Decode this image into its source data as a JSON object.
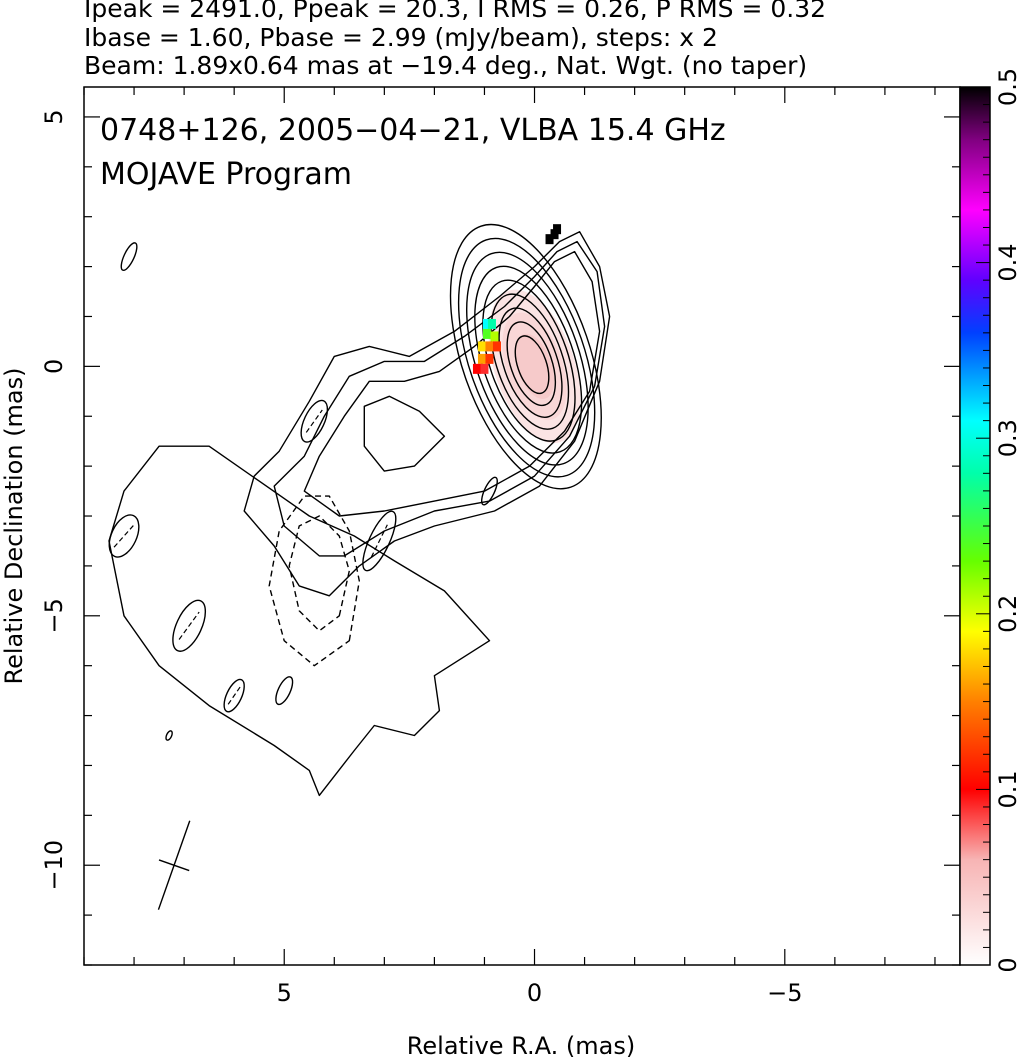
{
  "header": {
    "line1": "Ipeak = 2491.0, Ppeak = 20.3, I RMS = 0.26, P RMS = 0.32",
    "line2": "Ibase = 1.60, Pbase = 2.99 (mJy/beam), steps: x 2",
    "line3": "Beam: 1.89x0.64 mas at −19.4 deg., Nat. Wgt. (no taper)"
  },
  "chart_data": {
    "type": "heatmap",
    "title": "0748+126, 2005−04−21, VLBA 15.4 GHz",
    "subtitle": "MOJAVE Program",
    "xlabel": "Relative R.A. (mas)",
    "ylabel": "Relative Declination (mas)",
    "xlim": [
      9.0,
      -8.5
    ],
    "ylim": [
      -12.0,
      5.6
    ],
    "x_ticks": [
      {
        "value": 5,
        "label": "5"
      },
      {
        "value": 0,
        "label": "0"
      },
      {
        "value": -5,
        "label": "−5"
      }
    ],
    "y_ticks": [
      {
        "value": 5,
        "label": "5"
      },
      {
        "value": 0,
        "label": "0"
      },
      {
        "value": -5,
        "label": "−5"
      },
      {
        "value": -10,
        "label": "−10"
      }
    ],
    "colorbar": {
      "range": [
        0,
        0.5
      ],
      "ticks": [
        {
          "value": 0,
          "label": "0"
        },
        {
          "value": 0.1,
          "label": "0.1"
        },
        {
          "value": 0.2,
          "label": "0.2"
        },
        {
          "value": 0.3,
          "label": "0.3"
        },
        {
          "value": 0.4,
          "label": "0.4"
        },
        {
          "value": 0.5,
          "label": "0.5"
        }
      ]
    },
    "beam": {
      "major": 1.89,
      "minor": 0.64,
      "pa_deg": -19.4,
      "center": [
        7.2,
        -10.0
      ]
    },
    "core": {
      "x": 0.0,
      "y": 0.0,
      "peak": 2491.0,
      "contour_levels": 9
    },
    "jet_contours": [
      [
        [
          -0.9,
          2.7
        ],
        [
          -1.3,
          2.0
        ],
        [
          -1.5,
          1.0
        ],
        [
          -1.3,
          -0.3
        ],
        [
          -0.8,
          -1.5
        ],
        [
          -0.1,
          -2.4
        ],
        [
          0.8,
          -2.9
        ],
        [
          2.0,
          -3.2
        ],
        [
          2.8,
          -3.5
        ],
        [
          3.5,
          -4.0
        ],
        [
          4.1,
          -4.6
        ],
        [
          4.7,
          -4.4
        ],
        [
          5.2,
          -3.6
        ],
        [
          5.8,
          -2.9
        ],
        [
          5.6,
          -2.2
        ],
        [
          5.1,
          -1.7
        ],
        [
          4.5,
          -0.7
        ],
        [
          4.0,
          0.2
        ],
        [
          3.3,
          0.4
        ],
        [
          2.5,
          0.2
        ],
        [
          1.6,
          0.7
        ],
        [
          0.7,
          1.4
        ],
        [
          0.0,
          2.0
        ],
        [
          -0.5,
          2.5
        ]
      ],
      [
        [
          -0.85,
          2.5
        ],
        [
          -1.25,
          1.9
        ],
        [
          -1.4,
          0.8
        ],
        [
          -1.2,
          -0.4
        ],
        [
          -0.7,
          -1.4
        ],
        [
          0.0,
          -2.2
        ],
        [
          0.9,
          -2.7
        ],
        [
          2.0,
          -2.9
        ],
        [
          3.0,
          -3.3
        ],
        [
          3.8,
          -3.8
        ],
        [
          4.3,
          -3.8
        ],
        [
          5.0,
          -3.2
        ],
        [
          5.2,
          -2.4
        ],
        [
          4.6,
          -1.8
        ],
        [
          4.2,
          -1.0
        ],
        [
          3.7,
          -0.2
        ],
        [
          3.0,
          0.1
        ],
        [
          2.2,
          0.1
        ],
        [
          1.4,
          0.6
        ],
        [
          0.6,
          1.2
        ],
        [
          0.0,
          1.8
        ],
        [
          -0.45,
          2.3
        ]
      ],
      [
        [
          -0.8,
          2.3
        ],
        [
          -1.15,
          1.7
        ],
        [
          -1.3,
          0.7
        ],
        [
          -1.1,
          -0.5
        ],
        [
          -0.6,
          -1.3
        ],
        [
          0.1,
          -2.0
        ],
        [
          1.0,
          -2.5
        ],
        [
          2.0,
          -2.7
        ],
        [
          3.0,
          -2.9
        ],
        [
          3.9,
          -3.0
        ],
        [
          4.6,
          -2.5
        ],
        [
          4.3,
          -1.8
        ],
        [
          3.8,
          -1.0
        ],
        [
          3.3,
          -0.3
        ],
        [
          2.6,
          -0.3
        ],
        [
          1.9,
          -0.1
        ],
        [
          1.2,
          0.4
        ],
        [
          0.5,
          1.0
        ],
        [
          0.0,
          1.6
        ],
        [
          -0.4,
          2.1
        ]
      ],
      [
        [
          1.8,
          -1.4
        ],
        [
          2.3,
          -0.9
        ],
        [
          2.9,
          -0.6
        ],
        [
          3.4,
          -0.8
        ],
        [
          3.4,
          -1.6
        ],
        [
          3.0,
          -2.1
        ],
        [
          2.4,
          -2.0
        ]
      ]
    ],
    "sw_contours": [
      [
        [
          2.0,
          -6.2
        ],
        [
          1.9,
          -6.9
        ],
        [
          2.4,
          -7.4
        ],
        [
          3.2,
          -7.2
        ],
        [
          3.6,
          -7.7
        ],
        [
          4.3,
          -8.6
        ],
        [
          4.5,
          -8.1
        ],
        [
          5.2,
          -7.6
        ],
        [
          6.5,
          -6.8
        ],
        [
          7.5,
          -6.0
        ],
        [
          8.2,
          -5.0
        ],
        [
          8.5,
          -3.5
        ],
        [
          8.2,
          -2.5
        ],
        [
          7.5,
          -1.6
        ],
        [
          6.5,
          -1.6
        ],
        [
          5.5,
          -2.3
        ],
        [
          4.5,
          -3.0
        ],
        [
          3.6,
          -3.4
        ],
        [
          2.8,
          -3.9
        ],
        [
          1.8,
          -4.5
        ],
        [
          0.9,
          -5.5
        ]
      ],
      [
        [
          3.7,
          -5.5
        ],
        [
          3.5,
          -4.3
        ],
        [
          3.7,
          -3.3
        ],
        [
          4.1,
          -2.6
        ],
        [
          4.6,
          -2.6
        ],
        [
          5.1,
          -3.3
        ],
        [
          5.3,
          -4.4
        ],
        [
          5.0,
          -5.5
        ],
        [
          4.4,
          -6.0
        ]
      ],
      [
        [
          3.9,
          -5.0
        ],
        [
          3.7,
          -4.1
        ],
        [
          3.9,
          -3.4
        ],
        [
          4.3,
          -3.0
        ],
        [
          4.7,
          -3.2
        ],
        [
          4.9,
          -4.0
        ],
        [
          4.7,
          -4.9
        ],
        [
          4.3,
          -5.3
        ]
      ]
    ],
    "noise_blobs": [
      {
        "x": 8.2,
        "y": -3.4,
        "rx": 0.25,
        "ry": 0.45,
        "hatched": true
      },
      {
        "x": 6.9,
        "y": -5.2,
        "rx": 0.25,
        "ry": 0.55,
        "hatched": true
      },
      {
        "x": 7.3,
        "y": -7.4,
        "rx": 0.05,
        "ry": 0.1,
        "hatched": false
      },
      {
        "x": 4.4,
        "y": -1.1,
        "rx": 0.2,
        "ry": 0.45,
        "hatched": true
      },
      {
        "x": 3.1,
        "y": -3.5,
        "rx": 0.2,
        "ry": 0.65,
        "hatched": true
      },
      {
        "x": 0.9,
        "y": -2.5,
        "rx": 0.1,
        "ry": 0.3,
        "hatched": false
      },
      {
        "x": 5.0,
        "y": -6.5,
        "rx": 0.12,
        "ry": 0.3,
        "hatched": false
      },
      {
        "x": 6.0,
        "y": -6.6,
        "rx": 0.15,
        "ry": 0.35,
        "hatched": true
      },
      {
        "x": 8.1,
        "y": 2.2,
        "rx": 0.1,
        "ry": 0.3,
        "hatched": false
      }
    ],
    "polarization_pixels": [
      {
        "x": 0.95,
        "y": 0.85,
        "v": 0.31
      },
      {
        "x": 0.85,
        "y": 0.85,
        "v": 0.28
      },
      {
        "x": 0.95,
        "y": 0.65,
        "v": 0.24
      },
      {
        "x": 0.8,
        "y": 0.6,
        "v": 0.21
      },
      {
        "x": 1.05,
        "y": 0.4,
        "v": 0.18
      },
      {
        "x": 0.9,
        "y": 0.4,
        "v": 0.15
      },
      {
        "x": 0.75,
        "y": 0.4,
        "v": 0.12
      },
      {
        "x": 1.05,
        "y": 0.15,
        "v": 0.16
      },
      {
        "x": 0.9,
        "y": 0.15,
        "v": 0.12
      },
      {
        "x": 1.15,
        "y": -0.05,
        "v": 0.1
      },
      {
        "x": 1.0,
        "y": -0.05,
        "v": 0.09
      },
      {
        "x": -0.3,
        "y": 2.55,
        "v": 0.5
      },
      {
        "x": -0.4,
        "y": 2.65,
        "v": 0.5
      },
      {
        "x": -0.45,
        "y": 2.75,
        "v": 0.5
      }
    ]
  }
}
